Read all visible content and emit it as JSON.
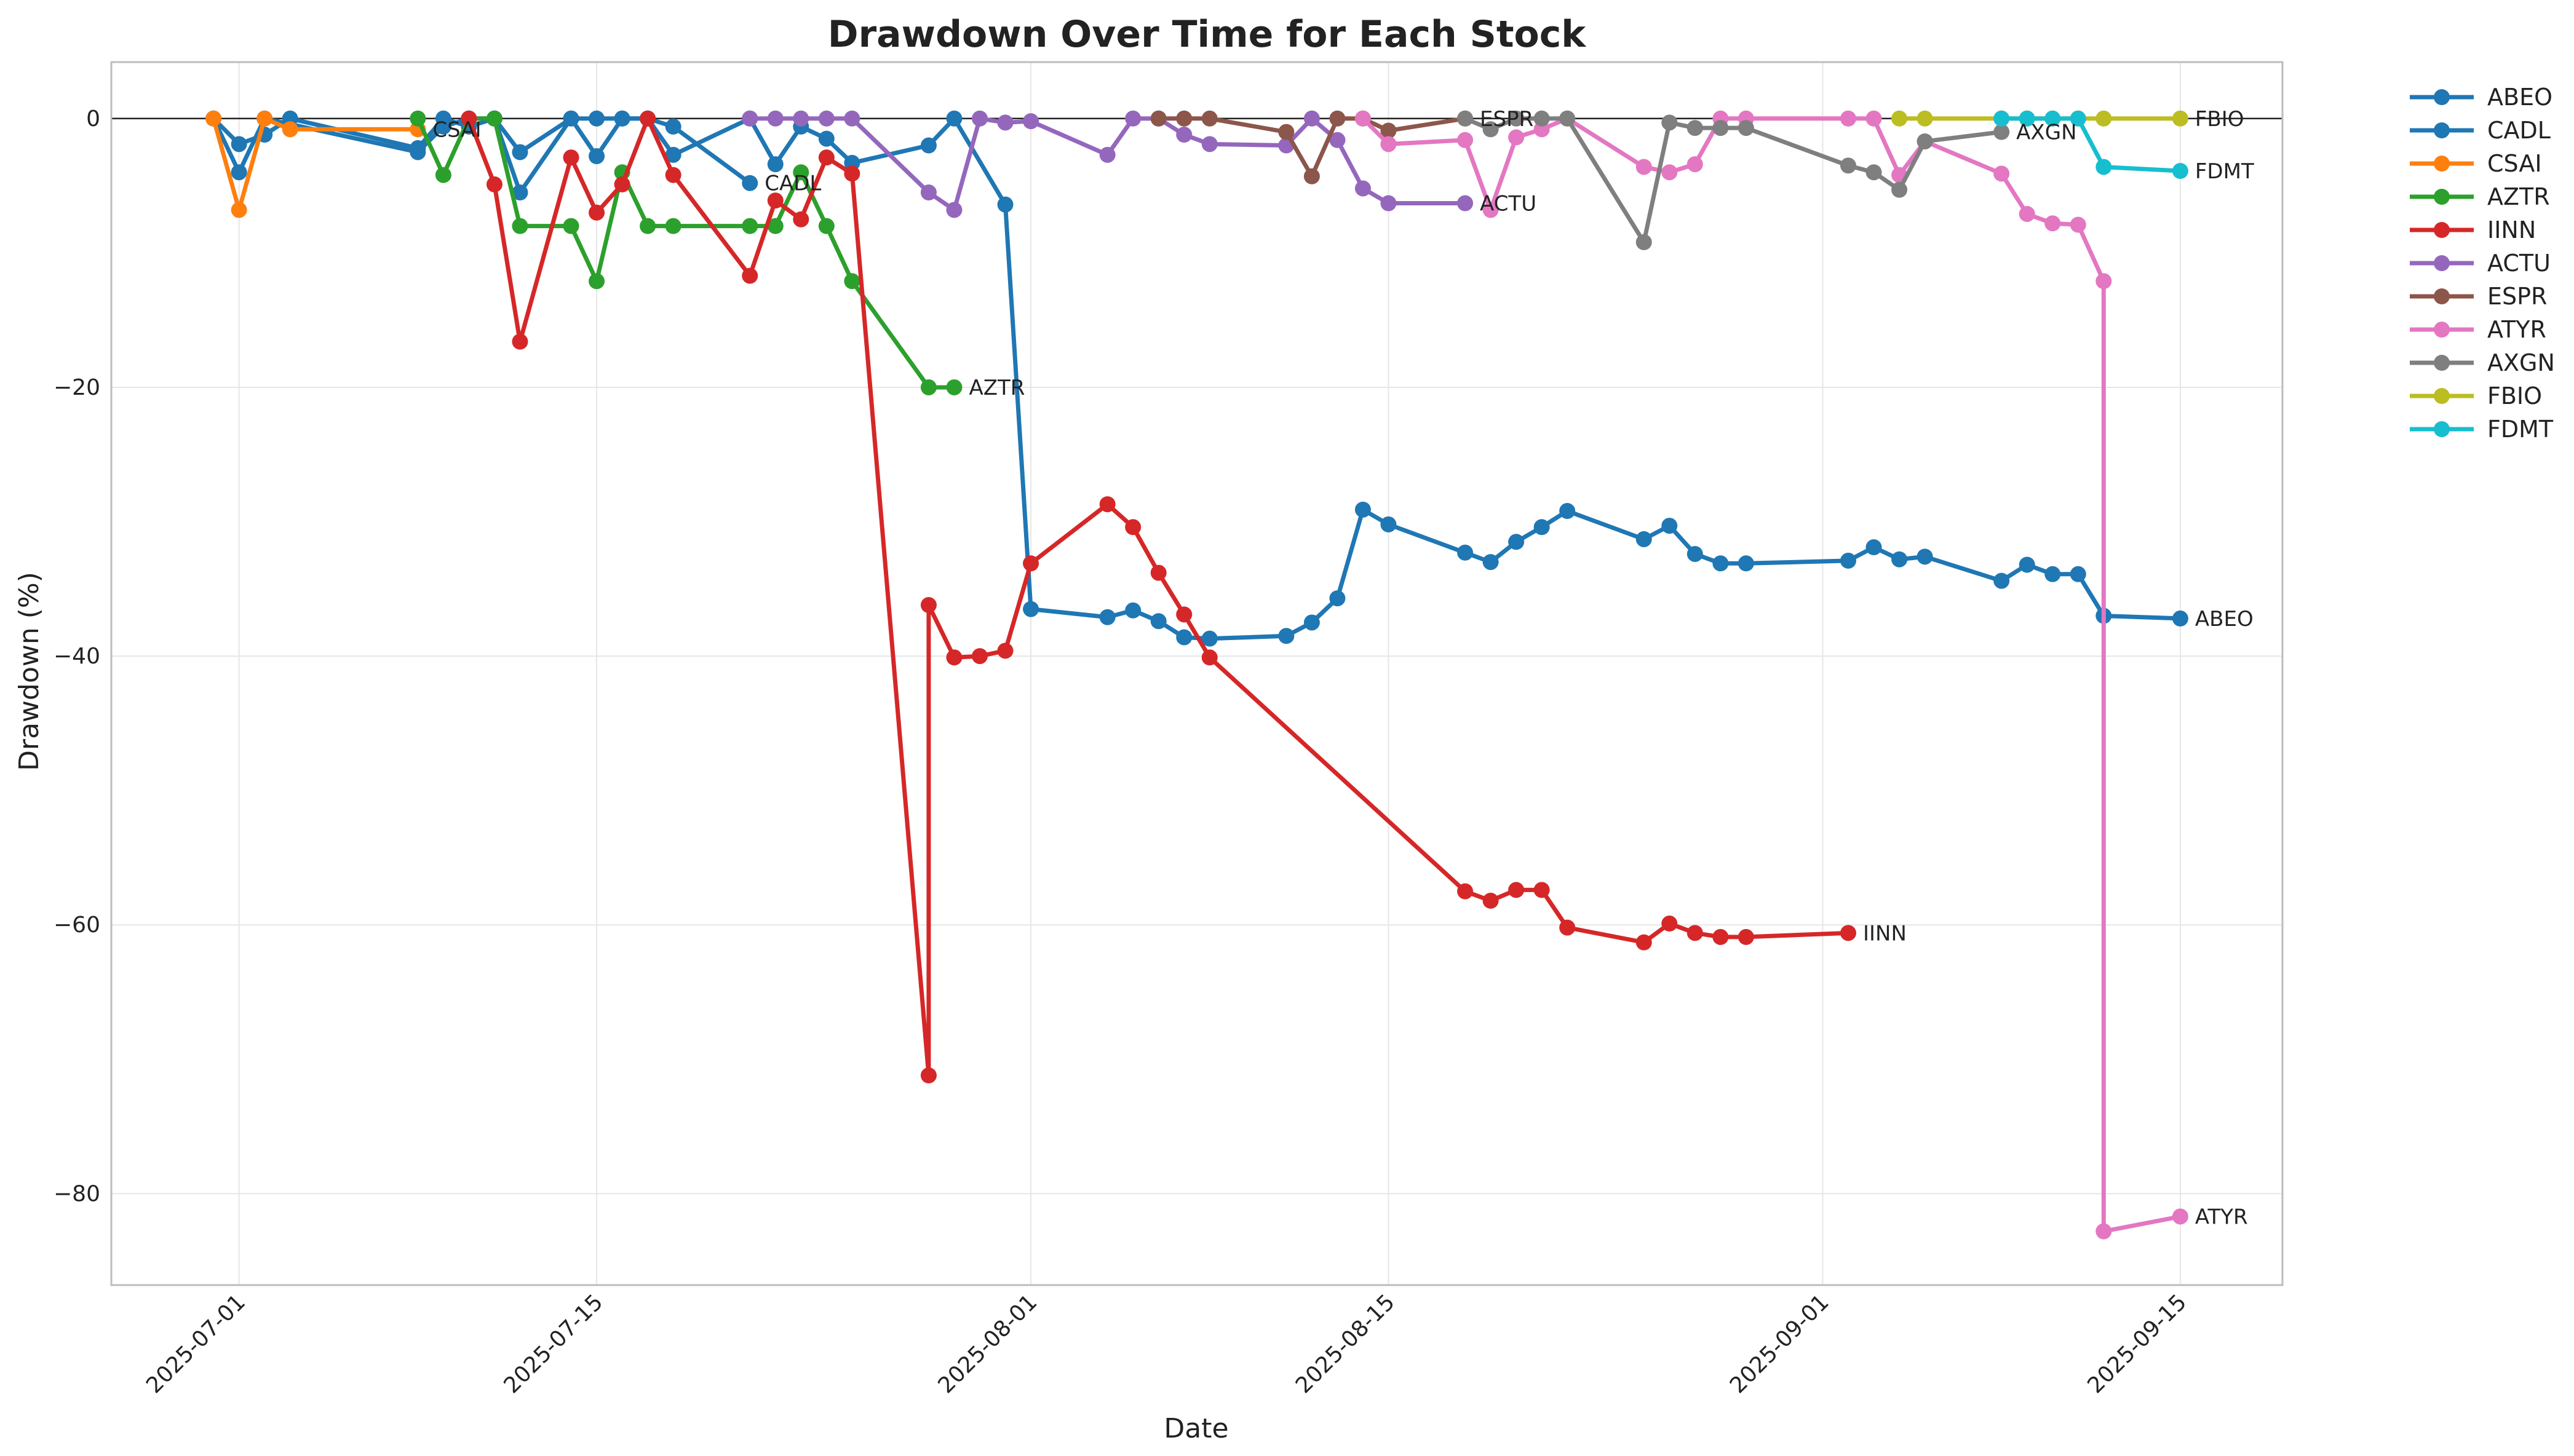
{
  "chart_data": {
    "type": "line",
    "title": "Drawdown Over Time for Each Stock",
    "xlabel": "Date",
    "ylabel": "Drawdown (%)",
    "x_ticks": [
      "2025-07-01",
      "2025-07-15",
      "2025-08-01",
      "2025-08-15",
      "2025-09-01",
      "2025-09-15"
    ],
    "y_ticks": [
      0,
      -20,
      -40,
      -60,
      -80
    ],
    "y_tick_labels": [
      "0",
      "−20",
      "−40",
      "−60",
      "−80"
    ],
    "xlim": [
      "2025-06-26",
      "2025-09-19"
    ],
    "ylim": [
      -86.8,
      4.2
    ],
    "grid": true,
    "legend_position": "outside-top-right",
    "series": [
      {
        "name": "ABEO",
        "color": "#1f77b4",
        "end_label": "ABEO",
        "points": [
          [
            "2025-06-30",
            0
          ],
          [
            "2025-07-01",
            -1.9
          ],
          [
            "2025-07-02",
            -1.2
          ],
          [
            "2025-07-03",
            0
          ],
          [
            "2025-07-08",
            -2.2
          ],
          [
            "2025-07-09",
            0
          ],
          [
            "2025-07-10",
            -0.6
          ],
          [
            "2025-07-11",
            0
          ],
          [
            "2025-07-12",
            -2.5
          ],
          [
            "2025-07-14",
            0
          ],
          [
            "2025-07-15",
            -2.8
          ],
          [
            "2025-07-16",
            0
          ],
          [
            "2025-07-17",
            0
          ],
          [
            "2025-07-18",
            -2.7
          ],
          [
            "2025-07-21",
            0
          ],
          [
            "2025-07-22",
            -3.4
          ],
          [
            "2025-07-23",
            -0.6
          ],
          [
            "2025-07-24",
            -1.5
          ],
          [
            "2025-07-25",
            -3.3
          ],
          [
            "2025-07-28",
            -2
          ],
          [
            "2025-07-29",
            0
          ],
          [
            "2025-07-31",
            -6.4
          ],
          [
            "2025-08-01",
            -36.5
          ],
          [
            "2025-08-04",
            -37.1
          ],
          [
            "2025-08-05",
            -36.6
          ],
          [
            "2025-08-06",
            -37.4
          ],
          [
            "2025-08-07",
            -38.6
          ],
          [
            "2025-08-08",
            -38.7
          ],
          [
            "2025-08-11",
            -38.5
          ],
          [
            "2025-08-12",
            -37.5
          ],
          [
            "2025-08-13",
            -35.7
          ],
          [
            "2025-08-14",
            -29.1
          ],
          [
            "2025-08-15",
            -30.2
          ],
          [
            "2025-08-18",
            -32.3
          ],
          [
            "2025-08-19",
            -33
          ],
          [
            "2025-08-20",
            -31.5
          ],
          [
            "2025-08-21",
            -30.4
          ],
          [
            "2025-08-22",
            -29.2
          ],
          [
            "2025-08-25",
            -31.3
          ],
          [
            "2025-08-26",
            -30.3
          ],
          [
            "2025-08-27",
            -32.4
          ],
          [
            "2025-08-28",
            -33.1
          ],
          [
            "2025-08-29",
            -33.1
          ],
          [
            "2025-09-02",
            -32.9
          ],
          [
            "2025-09-03",
            -31.9
          ],
          [
            "2025-09-04",
            -32.8
          ],
          [
            "2025-09-05",
            -32.6
          ],
          [
            "2025-09-08",
            -34.4
          ],
          [
            "2025-09-09",
            -33.2
          ],
          [
            "2025-09-10",
            -33.9
          ],
          [
            "2025-09-11",
            -33.9
          ],
          [
            "2025-09-12",
            -37
          ],
          [
            "2025-09-15",
            -37.2
          ]
        ]
      },
      {
        "name": "CADL",
        "color": "#1f77b4",
        "end_label": "CADL",
        "points": [
          [
            "2025-06-30",
            0
          ],
          [
            "2025-07-01",
            -4.0
          ],
          [
            "2025-07-02",
            0
          ],
          [
            "2025-07-08",
            -2.5
          ],
          [
            "2025-07-09",
            -0.6
          ],
          [
            "2025-07-10",
            0
          ],
          [
            "2025-07-11",
            0
          ],
          [
            "2025-07-12",
            -5.5
          ],
          [
            "2025-07-14",
            0
          ],
          [
            "2025-07-15",
            0
          ],
          [
            "2025-07-16",
            0
          ],
          [
            "2025-07-17",
            0
          ],
          [
            "2025-07-18",
            -0.6
          ],
          [
            "2025-07-21",
            -4.8
          ]
        ]
      },
      {
        "name": "CSAI",
        "color": "#ff7f0e",
        "end_label": "CSAI",
        "points": [
          [
            "2025-06-30",
            0
          ],
          [
            "2025-07-01",
            -6.8
          ],
          [
            "2025-07-02",
            0
          ],
          [
            "2025-07-03",
            -0.8
          ],
          [
            "2025-07-08",
            -0.8
          ]
        ]
      },
      {
        "name": "AZTR",
        "color": "#2ca02c",
        "end_label": "AZTR",
        "points": [
          [
            "2025-07-08",
            0
          ],
          [
            "2025-07-09",
            -4.2
          ],
          [
            "2025-07-10",
            0
          ],
          [
            "2025-07-11",
            0
          ],
          [
            "2025-07-12",
            -8.0
          ],
          [
            "2025-07-14",
            -8.0
          ],
          [
            "2025-07-15",
            -12.1
          ],
          [
            "2025-07-16",
            -4.0
          ],
          [
            "2025-07-17",
            -8.0
          ],
          [
            "2025-07-18",
            -8.0
          ],
          [
            "2025-07-21",
            -8.0
          ],
          [
            "2025-07-22",
            -8.0
          ],
          [
            "2025-07-23",
            -4.0
          ],
          [
            "2025-07-24",
            -8.0
          ],
          [
            "2025-07-25",
            -12.1
          ],
          [
            "2025-07-28",
            -20.0
          ],
          [
            "2025-07-29",
            -20.0
          ]
        ]
      },
      {
        "name": "IINN",
        "color": "#d62728",
        "end_label": "IINN",
        "points": [
          [
            "2025-07-10",
            0
          ],
          [
            "2025-07-11",
            -4.9
          ],
          [
            "2025-07-12",
            -16.6
          ],
          [
            "2025-07-14",
            -2.9
          ],
          [
            "2025-07-15",
            -7.0
          ],
          [
            "2025-07-16",
            -4.9
          ],
          [
            "2025-07-17",
            0
          ],
          [
            "2025-07-18",
            -4.2
          ],
          [
            "2025-07-21",
            -11.7
          ],
          [
            "2025-07-22",
            -6.1
          ],
          [
            "2025-07-23",
            -7.5
          ],
          [
            "2025-07-24",
            -2.9
          ],
          [
            "2025-07-25",
            -4.1
          ],
          [
            "2025-07-28",
            -71.2
          ],
          [
            "2025-07-28",
            -36.2
          ],
          [
            "2025-07-29",
            -40.1
          ],
          [
            "2025-07-30",
            -40.0
          ],
          [
            "2025-07-31",
            -39.6
          ],
          [
            "2025-08-01",
            -33.1
          ],
          [
            "2025-08-04",
            -28.7
          ],
          [
            "2025-08-05",
            -30.4
          ],
          [
            "2025-08-06",
            -33.8
          ],
          [
            "2025-08-07",
            -36.9
          ],
          [
            "2025-08-08",
            -40.1
          ],
          [
            "2025-08-18",
            -57.5
          ],
          [
            "2025-08-19",
            -58.2
          ],
          [
            "2025-08-20",
            -57.4
          ],
          [
            "2025-08-21",
            -57.4
          ],
          [
            "2025-08-22",
            -60.2
          ],
          [
            "2025-08-25",
            -61.3
          ],
          [
            "2025-08-26",
            -59.9
          ],
          [
            "2025-08-27",
            -60.6
          ],
          [
            "2025-08-28",
            -60.9
          ],
          [
            "2025-08-29",
            -60.9
          ],
          [
            "2025-09-02",
            -60.6
          ]
        ]
      },
      {
        "name": "ACTU",
        "color": "#9467bd",
        "end_label": "ACTU",
        "points": [
          [
            "2025-07-21",
            0
          ],
          [
            "2025-07-22",
            0
          ],
          [
            "2025-07-23",
            0
          ],
          [
            "2025-07-24",
            0
          ],
          [
            "2025-07-25",
            0
          ],
          [
            "2025-07-28",
            -5.5
          ],
          [
            "2025-07-29",
            -6.8
          ],
          [
            "2025-07-30",
            0
          ],
          [
            "2025-07-31",
            -0.3
          ],
          [
            "2025-08-01",
            -0.2
          ],
          [
            "2025-08-04",
            -2.7
          ],
          [
            "2025-08-05",
            0
          ],
          [
            "2025-08-06",
            0
          ],
          [
            "2025-08-07",
            -1.2
          ],
          [
            "2025-08-08",
            -1.9
          ],
          [
            "2025-08-11",
            -2.0
          ],
          [
            "2025-08-12",
            0
          ],
          [
            "2025-08-13",
            -1.6
          ],
          [
            "2025-08-14",
            -5.2
          ],
          [
            "2025-08-15",
            -6.3
          ],
          [
            "2025-08-18",
            -6.3
          ]
        ]
      },
      {
        "name": "ESPR",
        "color": "#8c564b",
        "end_label": "ESPR",
        "points": [
          [
            "2025-08-06",
            0
          ],
          [
            "2025-08-07",
            0
          ],
          [
            "2025-08-08",
            0
          ],
          [
            "2025-08-11",
            -1.0
          ],
          [
            "2025-08-12",
            -4.3
          ],
          [
            "2025-08-13",
            0
          ],
          [
            "2025-08-14",
            0
          ],
          [
            "2025-08-15",
            -0.9
          ],
          [
            "2025-08-18",
            0
          ]
        ]
      },
      {
        "name": "ATYR",
        "color": "#e377c2",
        "end_label": "ATYR",
        "points": [
          [
            "2025-08-14",
            0
          ],
          [
            "2025-08-15",
            -1.9
          ],
          [
            "2025-08-18",
            -1.6
          ],
          [
            "2025-08-19",
            -6.8
          ],
          [
            "2025-08-20",
            -1.4
          ],
          [
            "2025-08-21",
            -0.8
          ],
          [
            "2025-08-22",
            0
          ],
          [
            "2025-08-25",
            -3.6
          ],
          [
            "2025-08-26",
            -4.0
          ],
          [
            "2025-08-27",
            -3.4
          ],
          [
            "2025-08-28",
            0
          ],
          [
            "2025-08-29",
            0
          ],
          [
            "2025-09-02",
            0
          ],
          [
            "2025-09-03",
            0
          ],
          [
            "2025-09-04",
            -4.2
          ],
          [
            "2025-09-05",
            -1.7
          ],
          [
            "2025-09-08",
            -4.1
          ],
          [
            "2025-09-09",
            -7.1
          ],
          [
            "2025-09-10",
            -7.8
          ],
          [
            "2025-09-11",
            -7.9
          ],
          [
            "2025-09-12",
            -12.1
          ],
          [
            "2025-09-12",
            -82.8
          ],
          [
            "2025-09-15",
            -81.7
          ]
        ]
      },
      {
        "name": "AXGN",
        "color": "#7f7f7f",
        "end_label": "AXGN",
        "points": [
          [
            "2025-08-18",
            0
          ],
          [
            "2025-08-19",
            -0.8
          ],
          [
            "2025-08-20",
            0
          ],
          [
            "2025-08-21",
            0
          ],
          [
            "2025-08-22",
            0
          ],
          [
            "2025-08-25",
            -9.2
          ],
          [
            "2025-08-26",
            -0.3
          ],
          [
            "2025-08-27",
            -0.7
          ],
          [
            "2025-08-28",
            -0.7
          ],
          [
            "2025-08-29",
            -0.7
          ],
          [
            "2025-09-02",
            -3.5
          ],
          [
            "2025-09-03",
            -4.0
          ],
          [
            "2025-09-04",
            -5.3
          ],
          [
            "2025-09-05",
            -1.7
          ],
          [
            "2025-09-08",
            -1.0
          ]
        ]
      },
      {
        "name": "FBIO",
        "color": "#bcbd22",
        "end_label": "FBIO",
        "points": [
          [
            "2025-09-04",
            0
          ],
          [
            "2025-09-05",
            0
          ],
          [
            "2025-09-08",
            0
          ],
          [
            "2025-09-09",
            0
          ],
          [
            "2025-09-10",
            0
          ],
          [
            "2025-09-11",
            0
          ],
          [
            "2025-09-12",
            0
          ],
          [
            "2025-09-15",
            0
          ]
        ]
      },
      {
        "name": "FDMT",
        "color": "#17becf",
        "end_label": "FDMT",
        "points": [
          [
            "2025-09-08",
            0
          ],
          [
            "2025-09-09",
            0
          ],
          [
            "2025-09-10",
            0
          ],
          [
            "2025-09-11",
            0
          ],
          [
            "2025-09-12",
            -3.6
          ],
          [
            "2025-09-15",
            -3.9
          ]
        ]
      }
    ]
  }
}
